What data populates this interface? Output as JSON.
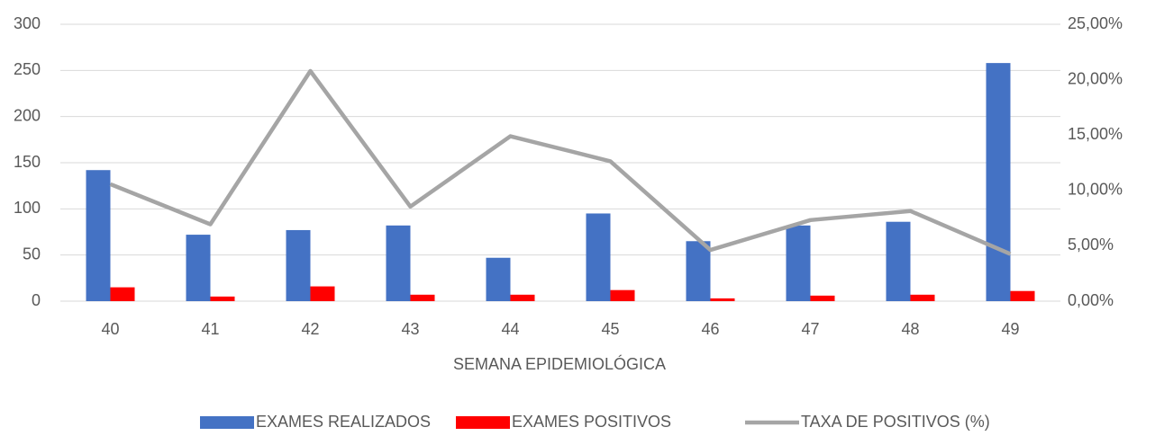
{
  "chart_data": {
    "type": "bar",
    "x_label": "SEMANA EPIDEMIOLÓGICA",
    "categories": [
      "40",
      "41",
      "42",
      "43",
      "44",
      "45",
      "46",
      "47",
      "48",
      "49"
    ],
    "series": [
      {
        "name": "EXAMES REALIZADOS",
        "color": "#4472c4",
        "type": "bar",
        "values": [
          142,
          72,
          77,
          82,
          47,
          95,
          65,
          82,
          86,
          258
        ]
      },
      {
        "name": "EXAMES POSITIVOS",
        "color": "#ff0000",
        "type": "bar",
        "values": [
          15,
          5,
          16,
          7,
          7,
          12,
          3,
          6,
          7,
          11
        ]
      },
      {
        "name": "TAXA DE POSITIVOS (%)",
        "color": "#a5a5a5",
        "type": "line",
        "axis": "y2",
        "values": [
          10.56,
          6.94,
          20.78,
          8.54,
          14.89,
          12.63,
          4.62,
          7.32,
          8.14,
          4.26
        ]
      }
    ],
    "ylim": [
      0,
      300
    ],
    "yticks": [
      0,
      50,
      100,
      150,
      200,
      250,
      300
    ],
    "y2lim": [
      0,
      25
    ],
    "y2ticks": [
      {
        "value": 0,
        "label": "0,00%"
      },
      {
        "value": 5,
        "label": "5,00%"
      },
      {
        "value": 10,
        "label": "10,00%"
      },
      {
        "value": 15,
        "label": "15,00%"
      },
      {
        "value": 20,
        "label": "20,00%"
      },
      {
        "value": 25,
        "label": "25,00%"
      }
    ],
    "grid": true,
    "legend": "bottom"
  }
}
